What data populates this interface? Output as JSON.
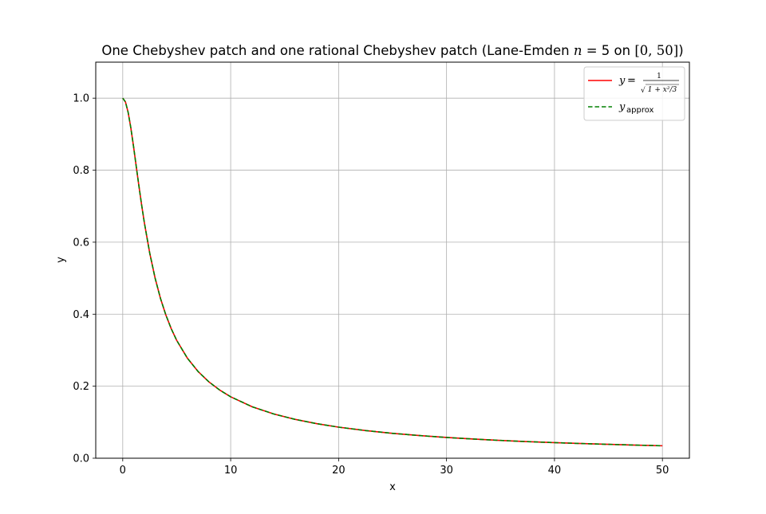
{
  "chart_data": {
    "type": "line",
    "title_prefix": "One Chebyshev patch and one rational Chebyshev patch (Lane-Emden ",
    "title_n": "n",
    "title_eq": " = 5 on ",
    "title_interval": "[0, 50]",
    "title_suffix": ")",
    "xlabel": "x",
    "ylabel": "y",
    "xlim": [
      -2.5,
      52.5
    ],
    "ylim": [
      0.0,
      1.1
    ],
    "xticks": [
      0,
      10,
      20,
      30,
      40,
      50
    ],
    "yticks": [
      0.0,
      0.2,
      0.4,
      0.6,
      0.8,
      1.0
    ],
    "xtick_labels": [
      "0",
      "10",
      "20",
      "30",
      "40",
      "50"
    ],
    "ytick_labels": [
      "0.0",
      "0.2",
      "0.4",
      "0.6",
      "0.8",
      "1.0"
    ],
    "grid": true,
    "legend_position": "top-right",
    "x": [
      0,
      0.25,
      0.5,
      0.75,
      1,
      1.25,
      1.5,
      1.75,
      2,
      2.5,
      3,
      3.5,
      4,
      4.5,
      5,
      6,
      7,
      8,
      9,
      10,
      12,
      14,
      16,
      18,
      20,
      22.5,
      25,
      27.5,
      30,
      32.5,
      35,
      37.5,
      40,
      42.5,
      45,
      47.5,
      50
    ],
    "series": [
      {
        "legend_lhs": "y",
        "legend_eq": " = ",
        "legend_num": "1",
        "legend_den": "1 + x²/3",
        "color": "#ff0000",
        "style": "solid",
        "values": [
          1.0,
          0.9897,
          0.9608,
          0.9177,
          0.866,
          0.8106,
          0.7559,
          0.7036,
          0.6547,
          0.5698,
          0.5,
          0.4435,
          0.3974,
          0.3592,
          0.3273,
          0.2774,
          0.2402,
          0.2116,
          0.189,
          0.1706,
          0.1428,
          0.1228,
          0.1077,
          0.0958,
          0.0863,
          0.0768,
          0.0691,
          0.0629,
          0.0576,
          0.0532,
          0.0494,
          0.0461,
          0.0433,
          0.0407,
          0.0385,
          0.0364,
          0.0346
        ]
      },
      {
        "legend_lhs": "y",
        "legend_sub": "approx",
        "color": "#008000",
        "style": "dashed",
        "values": [
          1.0,
          0.9897,
          0.9608,
          0.9177,
          0.866,
          0.8106,
          0.7559,
          0.7036,
          0.6547,
          0.5698,
          0.5,
          0.4435,
          0.3974,
          0.3592,
          0.3273,
          0.2774,
          0.2402,
          0.2116,
          0.189,
          0.1706,
          0.1428,
          0.1228,
          0.1077,
          0.0958,
          0.0863,
          0.0768,
          0.0691,
          0.0629,
          0.0576,
          0.0532,
          0.0494,
          0.0461,
          0.0433,
          0.0407,
          0.0385,
          0.0364,
          0.0346
        ]
      }
    ]
  }
}
